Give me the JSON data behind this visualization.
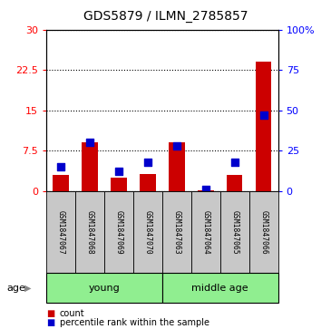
{
  "title": "GDS5879 / ILMN_2785857",
  "samples": [
    "GSM1847067",
    "GSM1847068",
    "GSM1847069",
    "GSM1847070",
    "GSM1847063",
    "GSM1847064",
    "GSM1847065",
    "GSM1847066"
  ],
  "count_values": [
    3.0,
    9.0,
    2.5,
    3.2,
    9.0,
    0.1,
    3.0,
    24.0
  ],
  "percentile_values": [
    15,
    30,
    12,
    18,
    28,
    1,
    18,
    47
  ],
  "groups": [
    {
      "label": "young",
      "start": 0,
      "end": 4
    },
    {
      "label": "middle age",
      "start": 4,
      "end": 8
    }
  ],
  "left_ylim": [
    0,
    30
  ],
  "left_yticks": [
    0,
    7.5,
    15,
    22.5,
    30
  ],
  "left_yticklabels": [
    "0",
    "7.5",
    "15",
    "22.5",
    "30"
  ],
  "right_ylim": [
    0,
    100
  ],
  "right_yticks": [
    0,
    25,
    50,
    75,
    100
  ],
  "right_yticklabels": [
    "0",
    "25",
    "50",
    "75",
    "100%"
  ],
  "bar_color": "#cc0000",
  "dot_color": "#0000cc",
  "group_bg_color": "#90ee90",
  "sample_cell_color": "#c8c8c8",
  "age_label": "age",
  "legend_items": [
    {
      "color": "#cc0000",
      "label": "count"
    },
    {
      "color": "#0000cc",
      "label": "percentile rank within the sample"
    }
  ],
  "bar_width": 0.55,
  "dot_size": 28,
  "figsize": [
    3.65,
    3.63
  ],
  "dpi": 100
}
